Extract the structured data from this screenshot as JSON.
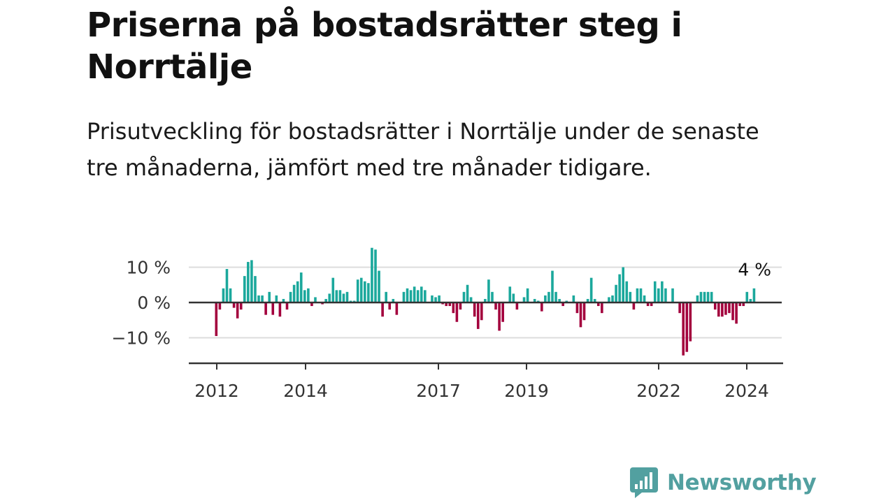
{
  "header": {
    "title": "Priserna på bostadsrätter steg i Norrtälje",
    "subtitle": "Prisutveckling för bostadsrätter i Norrtälje under de senaste tre månaderna, jämfört med tre månader tidigare."
  },
  "colors": {
    "positive": "#1ba89c",
    "negative": "#a3003d",
    "brand": "#52a0a0"
  },
  "brand": {
    "name": "Newsworthy",
    "icon": "newsworthy-logo-icon"
  },
  "chart_data": {
    "type": "bar",
    "ylim": [
      -17,
      17
    ],
    "grid": true,
    "y_ticks": [
      {
        "value": 10,
        "label": "10 %"
      },
      {
        "value": 0,
        "label": "0 %"
      },
      {
        "value": -10,
        "label": "−10 %"
      }
    ],
    "x_ticks": [
      "2012",
      "2014",
      "2017",
      "2019",
      "2022",
      "2024"
    ],
    "end_label": "4 %",
    "series": [
      {
        "values": [
          -9.5,
          -2,
          4,
          9.5,
          4,
          -1.5,
          -4.5,
          -2,
          7.5,
          11.5,
          12,
          7.5,
          2,
          2,
          -3.5,
          3,
          -3.5,
          2,
          -4,
          1,
          -2,
          3,
          5,
          6,
          8.5,
          3.5,
          4,
          -1,
          1.5,
          0,
          -0.5,
          1,
          2.5,
          7,
          3.5,
          3.5,
          2.5,
          3,
          0.5,
          0.5,
          6.5,
          7,
          6,
          5.5,
          15.5,
          15,
          9,
          -4,
          3,
          -2,
          1,
          -3.5,
          0,
          3,
          4,
          3.5,
          4.5,
          3.5,
          4.5,
          3.5,
          0,
          2,
          1.5,
          2,
          -0.5,
          -1,
          -1,
          -3,
          -5.5,
          -2,
          3,
          5,
          1.5,
          -4,
          -7.5,
          -5,
          1,
          6.5,
          3,
          -2,
          -8,
          -5.5,
          0,
          4.5,
          2.5,
          -2,
          0,
          1.5,
          4,
          0,
          1,
          0.5,
          -2.5,
          2,
          3,
          9,
          3,
          1,
          -1,
          0.5,
          0,
          2,
          -3,
          -7,
          -5,
          1,
          7,
          1,
          -1,
          -3,
          0,
          1.5,
          2,
          5,
          8,
          10,
          6,
          3,
          -2,
          4,
          4,
          2,
          -1,
          -1,
          6,
          4,
          6,
          4,
          0,
          4,
          0,
          -3,
          -15,
          -14,
          -11,
          0,
          2,
          3,
          3,
          3,
          3,
          -2,
          -4,
          -4,
          -3.5,
          -3,
          -5,
          -6,
          -1,
          -1,
          3,
          1,
          4
        ]
      }
    ]
  }
}
